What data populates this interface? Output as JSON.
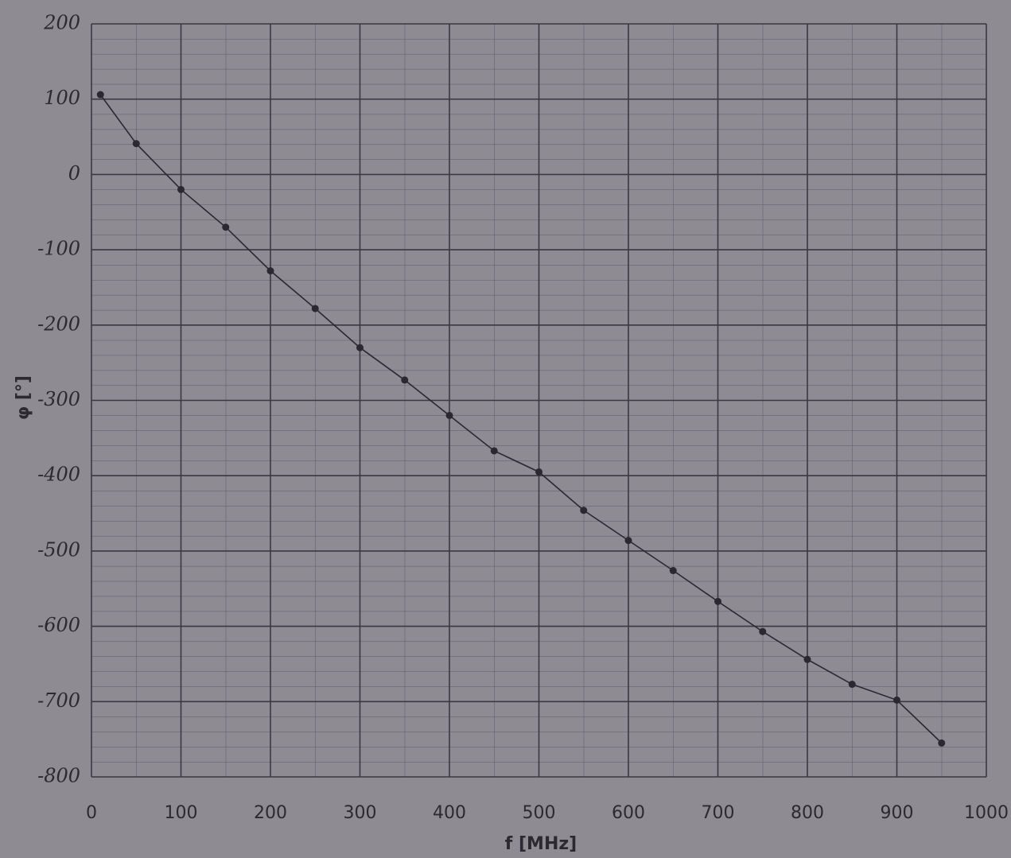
{
  "chart_data": {
    "type": "line",
    "xlabel": "f [MHz]",
    "ylabel": "φ [°]",
    "x": [
      10,
      50,
      100,
      150,
      200,
      250,
      300,
      350,
      400,
      450,
      500,
      550,
      600,
      650,
      700,
      750,
      800,
      850,
      900,
      950
    ],
    "series": [
      {
        "color": "#2a2830",
        "values": [
          106,
          41,
          -20,
          -70,
          -128,
          -178,
          -230,
          -273,
          -320,
          -367,
          -395,
          -446,
          -486,
          -526,
          -567,
          -607,
          -644,
          -677,
          -698,
          -755
        ]
      }
    ],
    "xlim": [
      0,
      1000
    ],
    "xticks": [
      0,
      100,
      200,
      300,
      400,
      500,
      600,
      700,
      800,
      900,
      1000
    ],
    "ylim": [
      -800,
      200
    ],
    "yticks": [
      200,
      100,
      0,
      -100,
      -200,
      -300,
      -400,
      -500,
      -600,
      -700,
      -800
    ],
    "grid": true
  }
}
